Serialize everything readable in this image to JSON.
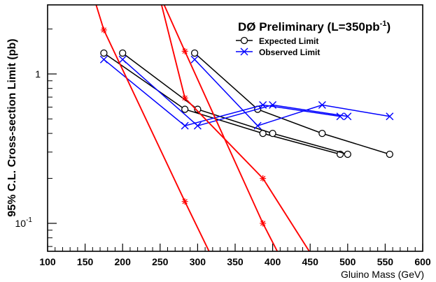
{
  "chart_data": {
    "type": "line",
    "title": "DØ Preliminary (L=350pb",
    "title_sup": "-1",
    "title_close": ")",
    "xlabel": "Gluino Mass (GeV)",
    "ylabel": "95% C.L. Cross-section Limit (pb)",
    "xlim": [
      100,
      600
    ],
    "ylim": [
      0.065,
      2.9
    ],
    "yscale": "log",
    "grid": false,
    "legend_placement": "top-right",
    "x_ticks": [
      100,
      150,
      200,
      250,
      300,
      350,
      400,
      450,
      500,
      550,
      600
    ],
    "y_ticks": [
      {
        "value": 1,
        "label": "1",
        "sup": ""
      },
      {
        "value": 0.1,
        "label": "10",
        "sup": "-1"
      }
    ],
    "legend": [
      {
        "label": "Expected Limit",
        "marker": "circle",
        "color": "#000000"
      },
      {
        "label": "Observed Limit",
        "marker": "x",
        "color": "#0000ff"
      }
    ],
    "series": [
      {
        "role": "expected",
        "color": "#000000",
        "marker": "circle",
        "x": [
          175,
          283,
          387,
          490
        ],
        "y": [
          1.38,
          0.58,
          0.4,
          0.29
        ]
      },
      {
        "role": "expected",
        "color": "#000000",
        "marker": "circle",
        "x": [
          200,
          300,
          400,
          500
        ],
        "y": [
          1.38,
          0.58,
          0.4,
          0.29
        ]
      },
      {
        "role": "expected",
        "color": "#000000",
        "marker": "circle",
        "x": [
          296,
          380,
          466,
          556
        ],
        "y": [
          1.38,
          0.58,
          0.4,
          0.29
        ]
      },
      {
        "role": "observed",
        "color": "#0000ff",
        "marker": "x",
        "x": [
          175,
          283,
          387,
          490
        ],
        "y": [
          1.25,
          0.45,
          0.62,
          0.52
        ]
      },
      {
        "role": "observed",
        "color": "#0000ff",
        "marker": "x",
        "x": [
          200,
          300,
          400,
          500
        ],
        "y": [
          1.25,
          0.45,
          0.62,
          0.52
        ]
      },
      {
        "role": "observed",
        "color": "#0000ff",
        "marker": "x",
        "x": [
          296,
          380,
          466,
          556
        ],
        "y": [
          1.25,
          0.45,
          0.62,
          0.52
        ]
      },
      {
        "role": "theory",
        "color": "#ff0000",
        "marker": "star",
        "x": [
          143,
          175,
          283,
          320
        ],
        "y": [
          6.54,
          1.97,
          0.14,
          0.058
        ]
      },
      {
        "role": "theory",
        "color": "#ff0000",
        "marker": "star",
        "x": [
          231,
          283,
          387,
          412
        ],
        "y": [
          5.44,
          1.42,
          0.1,
          0.057
        ]
      },
      {
        "role": "theory",
        "color": "#ff0000",
        "marker": "star",
        "x": [
          249,
          283,
          387,
          456
        ],
        "y": [
          3.32,
          0.69,
          0.2,
          0.057
        ]
      }
    ]
  }
}
